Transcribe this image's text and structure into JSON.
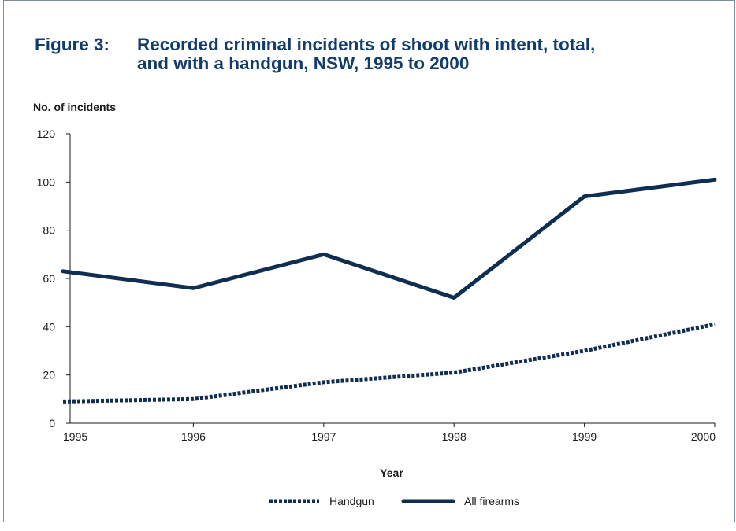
{
  "header": {
    "figure_label": "Figure 3:",
    "title_line1": "Recorded criminal incidents of shoot with intent, total,",
    "title_line2": "and with a handgun, NSW, 1995 to 2000"
  },
  "chart_data": {
    "type": "line",
    "title": "Figure 3:  Recorded criminal incidents of shoot with intent, total, and with a handgun, NSW, 1995 to 2000",
    "ylabel": "No. of incidents",
    "xlabel": "Year",
    "x": [
      "1995",
      "1996",
      "1997",
      "1998",
      "1999",
      "2000"
    ],
    "ylim": [
      0,
      120
    ],
    "yticks": [
      0,
      20,
      40,
      60,
      80,
      100,
      120
    ],
    "grid": false,
    "legend_position": "bottom",
    "series": [
      {
        "name": "Handgun",
        "style": "dashed",
        "color": "#0f2e52",
        "values": [
          9,
          10,
          17,
          21,
          30,
          41
        ]
      },
      {
        "name": "All firearms",
        "style": "solid",
        "color": "#0f2e52",
        "values": [
          63,
          56,
          70,
          52,
          94,
          101
        ]
      }
    ]
  }
}
